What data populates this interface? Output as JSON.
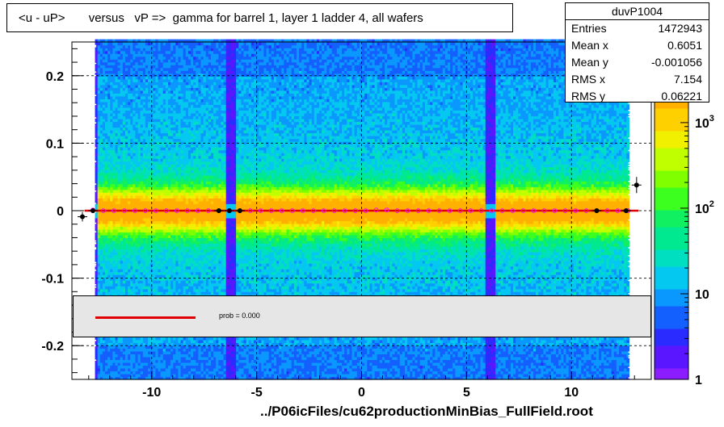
{
  "chart_data": {
    "type": "heatmap",
    "title": "<u - uP>       versus   vP =>  gamma for barrel 1, layer 1 ladder 4, all wafers",
    "xlabel": "../P06icFiles/cu62productionMinBias_FullField.root",
    "ylabel": "",
    "xlim": [
      -13.8,
      13.8
    ],
    "ylim": [
      -0.25,
      0.25
    ],
    "x_ticks": [
      -10,
      -5,
      0,
      5,
      10
    ],
    "x_tick_labels": [
      "-10",
      "-5",
      "0",
      "5",
      "10"
    ],
    "y_ticks": [
      -0.2,
      -0.1,
      0,
      0.1,
      0.2
    ],
    "y_tick_labels": [
      "-0.2",
      "-0.1",
      "0",
      "0.1",
      "0.2"
    ],
    "grid": true,
    "color_scale": {
      "log": true,
      "range": [
        1,
        2000
      ],
      "ticks": [
        1,
        10,
        100,
        1000
      ],
      "tick_labels": [
        "1",
        "10",
        "10^2",
        "10^3"
      ]
    },
    "stats": {
      "name": "duvP1004",
      "rows": [
        {
          "label": "Entries",
          "value": "1472943"
        },
        {
          "label": "Mean x",
          "value": "0.6051"
        },
        {
          "label": "Mean y",
          "value": "-0.001056"
        },
        {
          "label": "RMS x",
          "value": "7.154"
        },
        {
          "label": "RMS y",
          "value": "0.06221"
        }
      ]
    },
    "fit": {
      "type": "line",
      "x_range": [
        -13.2,
        13.2
      ],
      "y": 0.0
    },
    "legend": {
      "text": "prob = 0.000",
      "position": "bottom-center"
    },
    "profile_black": [
      {
        "x": -13.3,
        "y": -0.009,
        "err": 0.007
      },
      {
        "x": -12.8,
        "y": 0.0,
        "err": 0.002
      },
      {
        "x": -6.8,
        "y": 0.0,
        "err": 0.002
      },
      {
        "x": -6.3,
        "y": 0.0,
        "err": 0.002
      },
      {
        "x": -5.8,
        "y": 0.0,
        "err": 0.002
      },
      {
        "x": 11.2,
        "y": 0.0,
        "err": 0.002
      },
      {
        "x": 12.6,
        "y": 0.0,
        "err": 0.002
      },
      {
        "x": 13.1,
        "y": 0.038,
        "err": 0.012
      }
    ],
    "profile_red": {
      "x_start": -12.8,
      "x_step": 0.5,
      "count": 52,
      "y": [
        0.001,
        0.0,
        0.0,
        0.0,
        0.0,
        0.0,
        0.0,
        0.0,
        0.0,
        0.0,
        0.0,
        0.0,
        0.0,
        0.0,
        0.0,
        0.0,
        0.0,
        0.0,
        0.0,
        0.0,
        0.0,
        0.0,
        0.0,
        0.0,
        0.0,
        0.0,
        0.0,
        0.001,
        0.001,
        0.0,
        0.0,
        0.0,
        0.0,
        0.0,
        0.0,
        0.0,
        0.0,
        0.0,
        0.0,
        0.0,
        0.0,
        0.0,
        0.0,
        0.0,
        0.0,
        0.0,
        0.0,
        0.0,
        0.0,
        0.0,
        0.0,
        0.0
      ]
    },
    "dead_columns_x": [
      -12.9,
      -6.3,
      6.1,
      12.9
    ]
  }
}
